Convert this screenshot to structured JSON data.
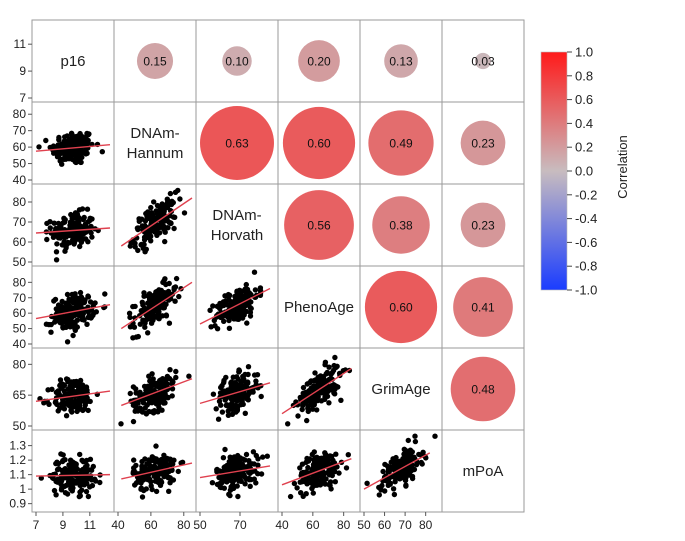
{
  "chart_data": {
    "type": "scatter",
    "variables": [
      "p16",
      "DNAm-Hannum",
      "DNAm-Horvath",
      "PhenoAge",
      "GrimAge",
      "mPoA"
    ],
    "variable_label_lines": [
      [
        "p16"
      ],
      [
        "DNAm-",
        "Hannum"
      ],
      [
        "DNAm-",
        "Horvath"
      ],
      [
        "PhenoAge"
      ],
      [
        "GrimAge"
      ],
      [
        "mPoA"
      ]
    ],
    "upper_triangle_correlations": [
      {
        "row": "p16",
        "col": "DNAm-Hannum",
        "r": 0.15,
        "label": "0.15"
      },
      {
        "row": "p16",
        "col": "DNAm-Horvath",
        "r": 0.1,
        "label": "0.10"
      },
      {
        "row": "p16",
        "col": "PhenoAge",
        "r": 0.2,
        "label": "0.20"
      },
      {
        "row": "p16",
        "col": "GrimAge",
        "r": 0.13,
        "label": "0.13"
      },
      {
        "row": "p16",
        "col": "mPoA",
        "r": 0.03,
        "label": "0.03"
      },
      {
        "row": "DNAm-Hannum",
        "col": "DNAm-Horvath",
        "r": 0.63,
        "label": "0.63"
      },
      {
        "row": "DNAm-Hannum",
        "col": "PhenoAge",
        "r": 0.6,
        "label": "0.60"
      },
      {
        "row": "DNAm-Hannum",
        "col": "GrimAge",
        "r": 0.49,
        "label": "0.49"
      },
      {
        "row": "DNAm-Hannum",
        "col": "mPoA",
        "r": 0.23,
        "label": "0.23"
      },
      {
        "row": "DNAm-Horvath",
        "col": "PhenoAge",
        "r": 0.56,
        "label": "0.56"
      },
      {
        "row": "DNAm-Horvath",
        "col": "GrimAge",
        "r": 0.38,
        "label": "0.38"
      },
      {
        "row": "DNAm-Horvath",
        "col": "mPoA",
        "r": 0.23,
        "label": "0.23"
      },
      {
        "row": "PhenoAge",
        "col": "GrimAge",
        "r": 0.6,
        "label": "0.60"
      },
      {
        "row": "PhenoAge",
        "col": "mPoA",
        "r": 0.41,
        "label": "0.41"
      },
      {
        "row": "GrimAge",
        "col": "mPoA",
        "r": 0.48,
        "label": "0.48"
      }
    ],
    "axis_ranges": {
      "p16": [
        7,
        12.5
      ],
      "DNAm-Hannum": [
        40,
        85
      ],
      "DNAm-Horvath": [
        50,
        87
      ],
      "PhenoAge": [
        40,
        88
      ],
      "GrimAge": [
        50,
        86
      ],
      "mPoA": [
        0.87,
        1.38
      ]
    },
    "y_ticks": {
      "p16": [
        "7",
        "9",
        "11"
      ],
      "DNAm-Hannum": [
        "40",
        "50",
        "60",
        "70",
        "80"
      ],
      "DNAm-Horvath": [
        "50",
        "60",
        "70",
        "80"
      ],
      "PhenoAge": [
        "40",
        "50",
        "60",
        "70",
        "80"
      ],
      "GrimAge": [
        "50",
        "65",
        "80"
      ],
      "mPoA": [
        "0.9",
        "1",
        "1.1",
        "1.2",
        "1.3"
      ]
    },
    "x_ticks": {
      "p16": [
        "7",
        "9",
        "11"
      ],
      "DNAm-Hannum": [
        "40",
        "60",
        "80"
      ],
      "DNAm-Horvath": [
        "50",
        "70"
      ],
      "PhenoAge": [
        "40",
        "60",
        "80"
      ],
      "GrimAge": [
        "50",
        "60",
        "70",
        "80"
      ]
    },
    "scatter_cells": [
      {
        "row": "DNAm-Hannum",
        "col": "p16",
        "fit": [
          [
            7,
            57.5
          ],
          [
            12.5,
            61.5
          ]
        ]
      },
      {
        "row": "DNAm-Horvath",
        "col": "p16",
        "fit": [
          [
            7,
            64.5
          ],
          [
            12.5,
            67.0
          ]
        ]
      },
      {
        "row": "DNAm-Horvath",
        "col": "DNAm-Hannum",
        "fit": [
          [
            42,
            58.0
          ],
          [
            85,
            82.0
          ]
        ]
      },
      {
        "row": "PhenoAge",
        "col": "p16",
        "fit": [
          [
            7,
            56.5
          ],
          [
            12.5,
            65.5
          ]
        ]
      },
      {
        "row": "PhenoAge",
        "col": "DNAm-Hannum",
        "fit": [
          [
            42,
            50.0
          ],
          [
            85,
            80.0
          ]
        ]
      },
      {
        "row": "PhenoAge",
        "col": "DNAm-Horvath",
        "fit": [
          [
            50,
            53.0
          ],
          [
            85,
            76.0
          ]
        ]
      },
      {
        "row": "GrimAge",
        "col": "p16",
        "fit": [
          [
            7,
            62.0
          ],
          [
            12.5,
            67.0
          ]
        ]
      },
      {
        "row": "GrimAge",
        "col": "DNAm-Hannum",
        "fit": [
          [
            42,
            60.0
          ],
          [
            85,
            73.0
          ]
        ]
      },
      {
        "row": "GrimAge",
        "col": "DNAm-Horvath",
        "fit": [
          [
            50,
            61.0
          ],
          [
            85,
            71.0
          ]
        ]
      },
      {
        "row": "GrimAge",
        "col": "PhenoAge",
        "fit": [
          [
            40,
            56.0
          ],
          [
            85,
            78.0
          ]
        ]
      },
      {
        "row": "mPoA",
        "col": "p16",
        "fit": [
          [
            7,
            1.09
          ],
          [
            12.5,
            1.1
          ]
        ]
      },
      {
        "row": "mPoA",
        "col": "DNAm-Hannum",
        "fit": [
          [
            42,
            1.07
          ],
          [
            85,
            1.18
          ]
        ]
      },
      {
        "row": "mPoA",
        "col": "DNAm-Horvath",
        "fit": [
          [
            50,
            1.08
          ],
          [
            85,
            1.16
          ]
        ]
      },
      {
        "row": "mPoA",
        "col": "PhenoAge",
        "fit": [
          [
            40,
            1.03
          ],
          [
            85,
            1.21
          ]
        ]
      },
      {
        "row": "mPoA",
        "col": "GrimAge",
        "fit": [
          [
            50,
            1.0
          ],
          [
            82,
            1.25
          ]
        ]
      }
    ],
    "colorbar": {
      "title": "Correlation",
      "range": [
        -1.0,
        1.0
      ],
      "tick_labels": [
        "1.0",
        "0.8",
        "0.6",
        "0.4",
        "0.2",
        "0.0",
        "-0.2",
        "-0.4",
        "-0.6",
        "-0.8",
        "-1.0"
      ],
      "colors": {
        "positive": "#ff1a1a",
        "neutral": "#c8bcbf",
        "negative": "#1a3cff"
      }
    },
    "point_color": "#000000",
    "fit_line_color": "#e0414f",
    "grid": false,
    "legend_placement": "right"
  }
}
